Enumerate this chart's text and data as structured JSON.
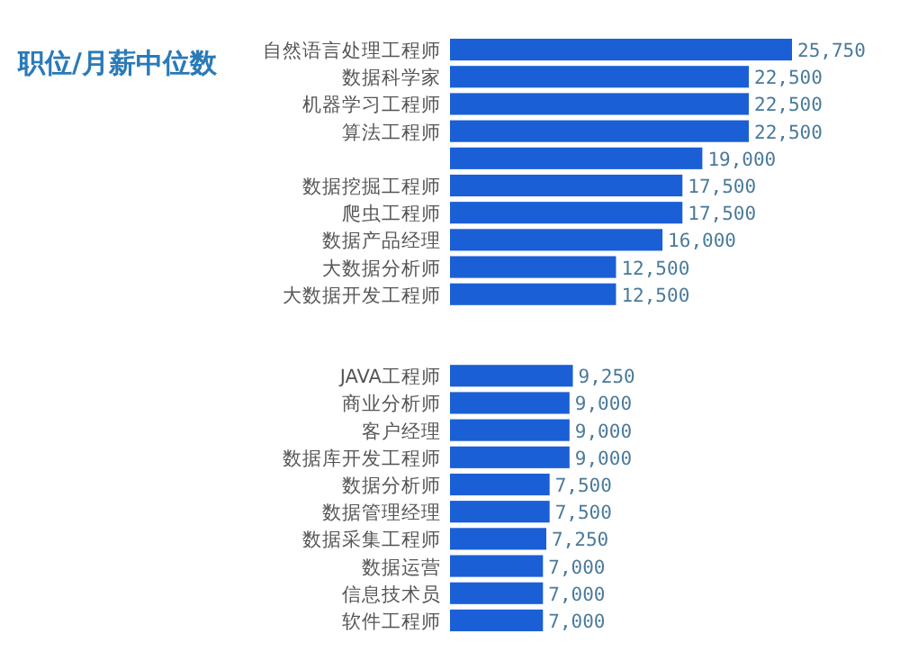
{
  "chart_data": {
    "type": "bar",
    "orientation": "horizontal",
    "title": "职位/月薪中位数",
    "categories": [
      "自然语言处理工程师",
      "数据科学家",
      "机器学习工程师",
      "算法工程师",
      null,
      "数据挖掘工程师",
      "爬虫工程师",
      "数据产品经理",
      "大数据分析师",
      "大数据开发工程师",
      null,
      null,
      "JAVA工程师",
      "商业分析师",
      "客户经理",
      "数据库开发工程师",
      "数据分析师",
      "数据管理经理",
      "数据采集工程师",
      "数据运营",
      "信息技术员",
      "软件工程师"
    ],
    "values": [
      25750,
      22500,
      22500,
      22500,
      19000,
      17500,
      17500,
      16000,
      12500,
      12500,
      null,
      null,
      9250,
      9000,
      9000,
      9000,
      7500,
      7500,
      7250,
      7000,
      7000,
      7000
    ],
    "value_labels": [
      "25,750",
      "22,500",
      "22,500",
      "22,500",
      "19,000",
      "17,500",
      "17,500",
      "16,000",
      "12,500",
      "12,500",
      null,
      null,
      "9,250",
      "9,000",
      "9,000",
      "9,000",
      "7,500",
      "7,500",
      "7,250",
      "7,000",
      "7,000",
      "7,000"
    ],
    "color": "#1a5fd6"
  }
}
